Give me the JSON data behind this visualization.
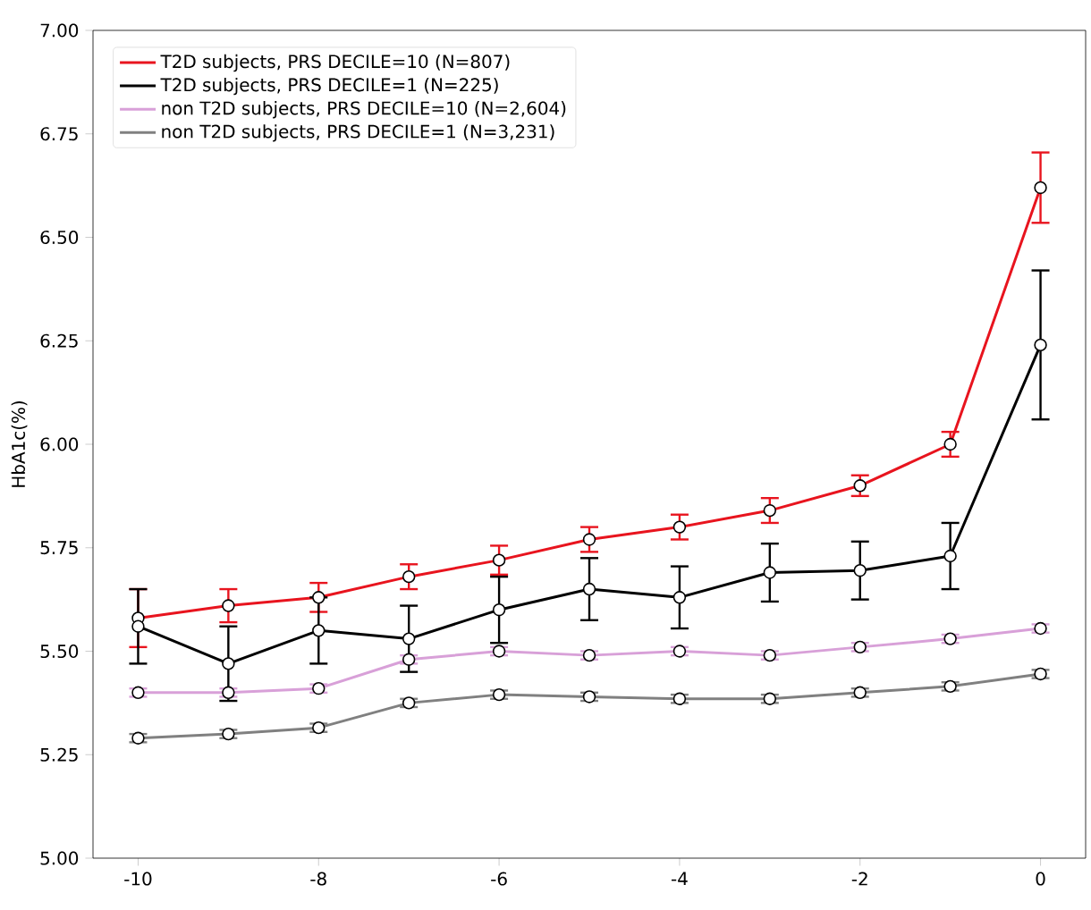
{
  "chart_data": {
    "type": "line",
    "ylabel": "HbA1c(%)",
    "x": [
      -10,
      -9,
      -8,
      -7,
      -6,
      -5,
      -4,
      -3,
      -2,
      -1,
      0
    ],
    "series": [
      {
        "name": "T2D subjects, PRS DECILE=10 (N=807)",
        "color": "#e8141e",
        "values": [
          5.58,
          5.61,
          5.63,
          5.68,
          5.72,
          5.77,
          5.8,
          5.84,
          5.9,
          6.0,
          6.62
        ],
        "errors": [
          0.07,
          0.04,
          0.035,
          0.03,
          0.035,
          0.03,
          0.03,
          0.03,
          0.025,
          0.03,
          0.085
        ]
      },
      {
        "name": "T2D subjects, PRS DECILE=1 (N=225)",
        "color": "#000000",
        "values": [
          5.56,
          5.47,
          5.55,
          5.53,
          5.6,
          5.65,
          5.63,
          5.69,
          5.695,
          5.73,
          6.24
        ],
        "errors": [
          0.09,
          0.09,
          0.08,
          0.08,
          0.08,
          0.075,
          0.075,
          0.07,
          0.07,
          0.08,
          0.18
        ]
      },
      {
        "name": "non T2D subjects, PRS DECILE=10 (N=2,604)",
        "color": "#d8a0d8",
        "values": [
          5.4,
          5.4,
          5.41,
          5.48,
          5.5,
          5.49,
          5.5,
          5.49,
          5.51,
          5.53,
          5.555
        ],
        "errors": [
          0.01,
          0.01,
          0.01,
          0.01,
          0.01,
          0.01,
          0.01,
          0.01,
          0.01,
          0.01,
          0.01
        ]
      },
      {
        "name": "non T2D subjects, PRS DECILE=1 (N=3,231)",
        "color": "#808080",
        "values": [
          5.29,
          5.3,
          5.315,
          5.375,
          5.395,
          5.39,
          5.385,
          5.385,
          5.4,
          5.415,
          5.445
        ],
        "errors": [
          0.01,
          0.01,
          0.01,
          0.01,
          0.01,
          0.01,
          0.01,
          0.01,
          0.01,
          0.01,
          0.01
        ]
      }
    ],
    "xlim": [
      -10.5,
      0.5
    ],
    "ylim": [
      5.0,
      7.0
    ],
    "xticks": [
      -10,
      -8,
      -6,
      -4,
      -2,
      0
    ],
    "yticks": [
      {
        "value": 5.0,
        "label": "5.00"
      },
      {
        "value": 5.25,
        "label": "5.25"
      },
      {
        "value": 5.5,
        "label": "5.50"
      },
      {
        "value": 5.75,
        "label": "5.75"
      },
      {
        "value": 6.0,
        "label": "6.00"
      },
      {
        "value": 6.25,
        "label": "6.25"
      },
      {
        "value": 6.5,
        "label": "6.50"
      },
      {
        "value": 6.75,
        "label": "6.75"
      },
      {
        "value": 7.0,
        "label": "7.00"
      }
    ],
    "legend": "top left",
    "marker": "circle",
    "line_style": "solid"
  }
}
